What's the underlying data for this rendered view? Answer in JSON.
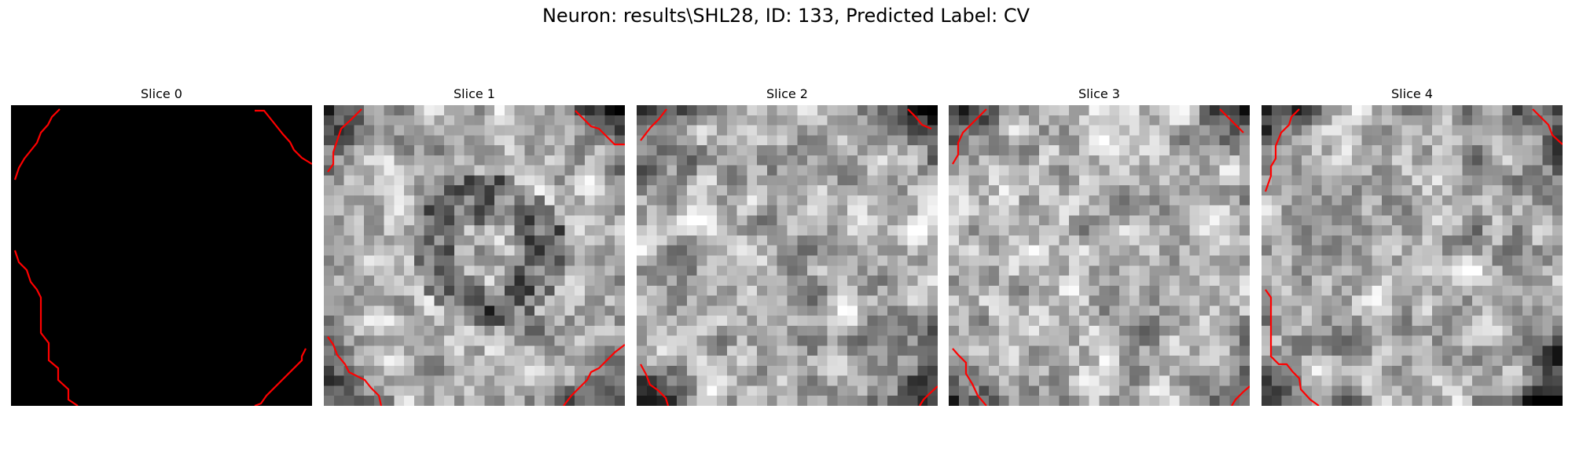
{
  "figure": {
    "title": "Neuron: results\\SHL28, ID: 133, Predicted Label: CV"
  },
  "slices": [
    {
      "title": "Slice 0",
      "image": "black slice with red contour segments at the corners",
      "mean_gray": 0.0
    },
    {
      "title": "Slice 1",
      "image": "grayscale noisy pixel slice with dark central ring, red contour segments at corners",
      "mean_gray": 0.68
    },
    {
      "title": "Slice 2",
      "image": "grayscale noisy pixel slice, red contour segments at corners",
      "mean_gray": 0.66
    },
    {
      "title": "Slice 3",
      "image": "grayscale noisy pixel slice, red contour segments at corners",
      "mean_gray": 0.7
    },
    {
      "title": "Slice 4",
      "image": "grayscale noisy pixel slice, red contour segments at corners",
      "mean_gray": 0.66
    }
  ],
  "colors": {
    "contour": "#ff0000",
    "background": "#ffffff"
  }
}
